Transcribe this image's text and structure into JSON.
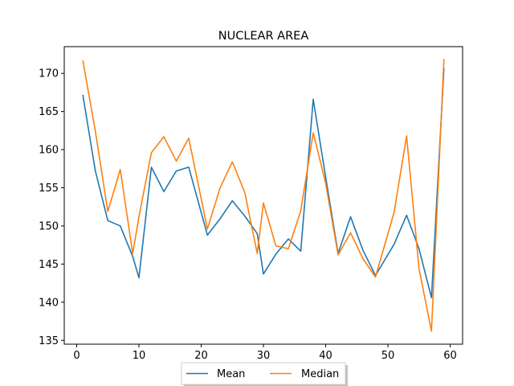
{
  "chart_data": {
    "type": "line",
    "title": "NUCLEAR AREA",
    "xlabel": "",
    "ylabel": "",
    "xlim": [
      -2.0,
      62.0
    ],
    "ylim": [
      134.5,
      173.5
    ],
    "xticks": [
      0,
      10,
      20,
      30,
      40,
      50,
      60
    ],
    "yticks": [
      135,
      140,
      145,
      150,
      155,
      160,
      165,
      170
    ],
    "grid": false,
    "legend": "bottom-center",
    "x": [
      1,
      3,
      5,
      7,
      9,
      10,
      12,
      14,
      16,
      18,
      21,
      23,
      25,
      27,
      29,
      30,
      32,
      34,
      36,
      38,
      40,
      42,
      44,
      46,
      48,
      51,
      53,
      55,
      57,
      59
    ],
    "series": [
      {
        "name": "Mean",
        "color": "#1f77b4",
        "values": [
          167.1,
          157.2,
          150.7,
          150.0,
          146.0,
          143.2,
          157.7,
          154.5,
          157.2,
          157.7,
          148.8,
          150.9,
          153.3,
          151.3,
          149.0,
          143.7,
          146.3,
          148.3,
          146.7,
          166.6,
          156.4,
          146.4,
          151.2,
          146.8,
          143.5,
          147.6,
          151.4,
          147.0,
          140.6,
          170.6
        ]
      },
      {
        "name": "Median",
        "color": "#ff7f0e",
        "values": [
          171.6,
          162.4,
          151.9,
          157.4,
          146.4,
          151.2,
          159.6,
          161.7,
          158.5,
          161.5,
          149.6,
          154.9,
          158.4,
          154.4,
          146.4,
          153.0,
          147.4,
          147.0,
          152.0,
          162.2,
          155.6,
          146.2,
          149.1,
          145.7,
          143.3,
          151.8,
          161.8,
          144.4,
          136.2,
          171.8
        ]
      }
    ]
  }
}
